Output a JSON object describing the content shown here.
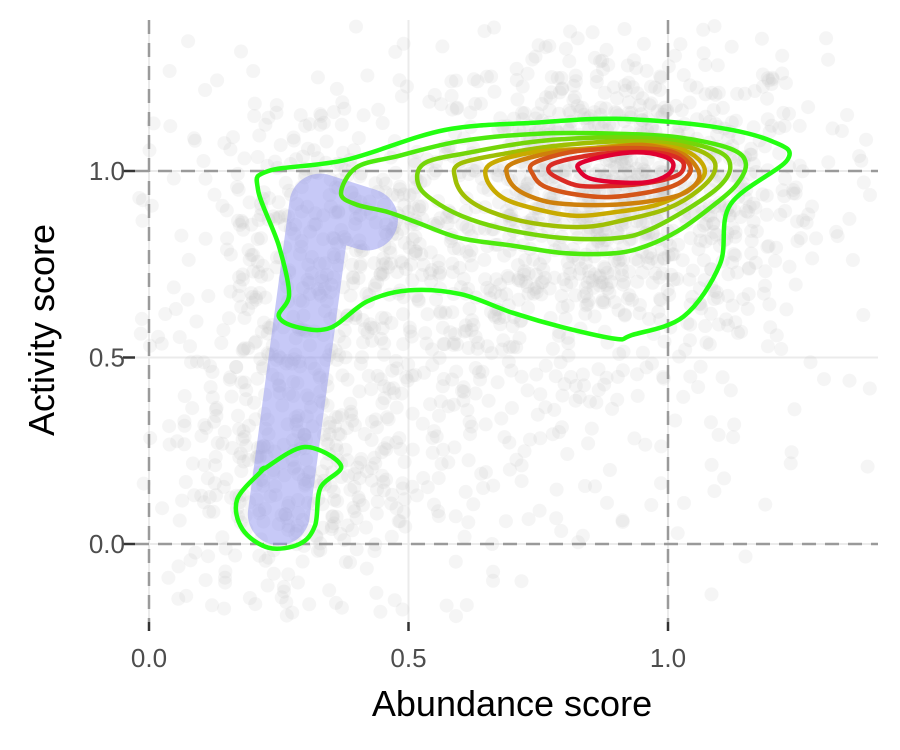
{
  "chart_data": {
    "type": "scatter",
    "title": "",
    "xlabel": "Abundance score",
    "ylabel": "Activity score",
    "xlim": [
      -0.02,
      1.4
    ],
    "ylim": [
      -0.2,
      1.4
    ],
    "x_ticks": [
      0.0,
      0.5,
      1.0
    ],
    "x_tick_labels": [
      "0.0",
      "0.5",
      "1.0"
    ],
    "y_ticks": [
      0.0,
      0.5,
      1.0
    ],
    "y_tick_labels": [
      "0.0",
      "0.5",
      "1.0"
    ],
    "grid": true,
    "reference_lines": {
      "x": [
        0.0,
        1.0
      ],
      "y": [
        0.0,
        1.0
      ],
      "style": "dashed"
    },
    "colors": {
      "points": "#c8c8c8",
      "path": "#8f94f0",
      "contour_low": "#22ff11",
      "contour_high": "#e00030",
      "grid": "#ebebeb",
      "reference": "#9a9a9a"
    },
    "trend_path": {
      "x": [
        0.25,
        0.33,
        0.42
      ],
      "y": [
        0.08,
        0.91,
        0.87
      ]
    },
    "contours": [
      {
        "level": 1,
        "x": [
          0.22,
          0.3,
          0.37,
          0.33,
          0.32,
          0.29,
          0.23,
          0.18,
          0.17,
          0.22
        ],
        "y": [
          0.2,
          0.26,
          0.21,
          0.15,
          0.05,
          0.0,
          -0.01,
          0.04,
          0.12,
          0.2
        ]
      },
      {
        "level": 1,
        "x": [
          0.23,
          0.38,
          0.57,
          0.75,
          0.9,
          1.08,
          1.2,
          1.23,
          1.12,
          1.1,
          1.03,
          0.93,
          0.9,
          0.8,
          0.7,
          0.6,
          0.5,
          0.42,
          0.35,
          0.29,
          0.25,
          0.27,
          0.25,
          0.21
        ],
        "y": [
          1.0,
          1.03,
          1.11,
          1.13,
          1.14,
          1.12,
          1.08,
          1.03,
          0.91,
          0.75,
          0.61,
          0.56,
          0.55,
          0.58,
          0.62,
          0.67,
          0.68,
          0.65,
          0.58,
          0.58,
          0.61,
          0.67,
          0.8,
          0.95
        ]
      },
      {
        "level": 2,
        "x": [
          0.4,
          0.48,
          0.6,
          0.75,
          0.9,
          1.02,
          1.12,
          1.15,
          1.13,
          1.08,
          1.02,
          0.96,
          0.9,
          0.8,
          0.7,
          0.6,
          0.52,
          0.46,
          0.4,
          0.37
        ],
        "y": [
          1.01,
          1.04,
          1.08,
          1.1,
          1.1,
          1.09,
          1.06,
          1.02,
          0.96,
          0.9,
          0.84,
          0.8,
          0.78,
          0.78,
          0.8,
          0.82,
          0.86,
          0.89,
          0.91,
          0.94
        ]
      },
      {
        "level": 3,
        "x": [
          0.53,
          0.62,
          0.75,
          0.9,
          1.02,
          1.1,
          1.12,
          1.1,
          1.04,
          0.96,
          0.9,
          0.8,
          0.7,
          0.62,
          0.56,
          0.52
        ],
        "y": [
          1.02,
          1.05,
          1.08,
          1.09,
          1.08,
          1.05,
          1.01,
          0.96,
          0.9,
          0.84,
          0.82,
          0.82,
          0.84,
          0.87,
          0.91,
          0.96
        ]
      },
      {
        "level": 4,
        "x": [
          0.6,
          0.7,
          0.8,
          0.92,
          1.02,
          1.08,
          1.09,
          1.06,
          1.0,
          0.92,
          0.84,
          0.74,
          0.66,
          0.61,
          0.59
        ],
        "y": [
          1.02,
          1.05,
          1.07,
          1.08,
          1.07,
          1.04,
          1.0,
          0.95,
          0.9,
          0.87,
          0.85,
          0.86,
          0.89,
          0.93,
          0.98
        ]
      },
      {
        "level": 5,
        "x": [
          0.66,
          0.74,
          0.84,
          0.94,
          1.02,
          1.06,
          1.07,
          1.04,
          0.98,
          0.9,
          0.82,
          0.74,
          0.68,
          0.65
        ],
        "y": [
          1.02,
          1.05,
          1.06,
          1.07,
          1.06,
          1.03,
          0.99,
          0.95,
          0.91,
          0.89,
          0.88,
          0.9,
          0.93,
          0.98
        ]
      },
      {
        "level": 6,
        "x": [
          0.7,
          0.78,
          0.87,
          0.95,
          1.02,
          1.05,
          1.06,
          1.03,
          0.97,
          0.9,
          0.82,
          0.76,
          0.71,
          0.69
        ],
        "y": [
          1.02,
          1.05,
          1.06,
          1.07,
          1.05,
          1.02,
          0.98,
          0.94,
          0.92,
          0.91,
          0.91,
          0.92,
          0.95,
          0.99
        ]
      },
      {
        "level": 7,
        "x": [
          0.74,
          0.81,
          0.89,
          0.96,
          1.01,
          1.04,
          1.04,
          1.01,
          0.95,
          0.88,
          0.81,
          0.76,
          0.74
        ],
        "y": [
          1.02,
          1.05,
          1.06,
          1.06,
          1.05,
          1.02,
          0.99,
          0.96,
          0.94,
          0.93,
          0.94,
          0.96,
          0.99
        ]
      },
      {
        "level": 8,
        "x": [
          0.78,
          0.84,
          0.91,
          0.97,
          1.01,
          1.03,
          1.02,
          0.97,
          0.9,
          0.83,
          0.79,
          0.77
        ],
        "y": [
          1.02,
          1.04,
          1.05,
          1.05,
          1.04,
          1.02,
          0.99,
          0.97,
          0.96,
          0.96,
          0.98,
          1.0
        ]
      },
      {
        "level": 9,
        "x": [
          0.83,
          0.88,
          0.94,
          0.99,
          1.01,
          1.0,
          0.96,
          0.9,
          0.85,
          0.83
        ],
        "y": [
          1.02,
          1.04,
          1.05,
          1.04,
          1.02,
          0.99,
          0.97,
          0.97,
          0.98,
          1.0
        ]
      }
    ],
    "point_clusters": [
      {
        "cx": 0.9,
        "cy": 0.95,
        "sx": 0.2,
        "sy": 0.2,
        "n": 900
      },
      {
        "cx": 0.55,
        "cy": 0.55,
        "sx": 0.32,
        "sy": 0.32,
        "n": 700
      },
      {
        "cx": 0.28,
        "cy": 0.2,
        "sx": 0.12,
        "sy": 0.22,
        "n": 300
      },
      {
        "cx": 0.3,
        "cy": 0.85,
        "sx": 0.12,
        "sy": 0.18,
        "n": 200
      }
    ]
  }
}
